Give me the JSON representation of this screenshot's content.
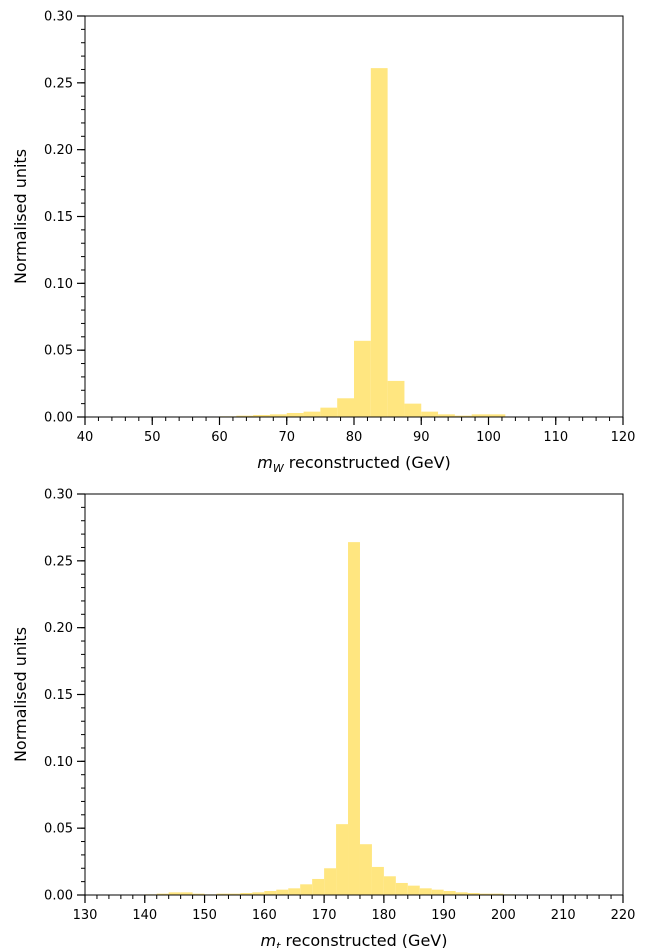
{
  "chart_data": [
    {
      "type": "bar",
      "subtype": "histogram",
      "bar_color": "#ffe680",
      "xlabel_var": "m",
      "xlabel_sub": "W",
      "xlabel_rest": " reconstructed (GeV)",
      "ylabel": "Normalised units",
      "xlim": [
        40,
        120
      ],
      "ylim": [
        0,
        0.3
      ],
      "x_major_ticks": [
        40,
        50,
        60,
        70,
        80,
        90,
        100,
        110,
        120
      ],
      "x_tick_labels": [
        "40",
        "50",
        "60",
        "70",
        "80",
        "90",
        "100",
        "110",
        "120"
      ],
      "x_minor_step": 2,
      "y_major_ticks": [
        0.0,
        0.05,
        0.1,
        0.15,
        0.2,
        0.25,
        0.3
      ],
      "y_tick_labels": [
        "0.00",
        "0.05",
        "0.10",
        "0.15",
        "0.20",
        "0.25",
        "0.30"
      ],
      "y_minor_step": 0.01,
      "bin_width": 2.5,
      "bins_start": [
        60,
        62.5,
        65,
        67.5,
        70,
        72.5,
        75,
        77.5,
        80,
        82.5,
        85,
        87.5,
        90,
        92.5,
        95,
        97.5,
        100
      ],
      "values": [
        0.0005,
        0.001,
        0.0015,
        0.002,
        0.003,
        0.004,
        0.007,
        0.014,
        0.057,
        0.261,
        0.027,
        0.01,
        0.004,
        0.002,
        0.001,
        0.002,
        0.002
      ]
    },
    {
      "type": "bar",
      "subtype": "histogram",
      "bar_color": "#ffe680",
      "xlabel_var": "m",
      "xlabel_sub": "t",
      "xlabel_rest": " reconstructed (GeV)",
      "ylabel": "Normalised units",
      "xlim": [
        130,
        220
      ],
      "ylim": [
        0,
        0.3
      ],
      "x_major_ticks": [
        130,
        140,
        150,
        160,
        170,
        180,
        190,
        200,
        210,
        220
      ],
      "x_tick_labels": [
        "130",
        "140",
        "150",
        "160",
        "170",
        "180",
        "190",
        "200",
        "210",
        "220"
      ],
      "x_minor_step": 2,
      "y_major_ticks": [
        0.0,
        0.05,
        0.1,
        0.15,
        0.2,
        0.25,
        0.3
      ],
      "y_tick_labels": [
        "0.00",
        "0.05",
        "0.10",
        "0.15",
        "0.20",
        "0.25",
        "0.30"
      ],
      "y_minor_step": 0.01,
      "bin_width": 2,
      "bins_start": [
        140,
        142,
        144,
        146,
        148,
        150,
        152,
        154,
        156,
        158,
        160,
        162,
        164,
        166,
        168,
        170,
        172,
        174,
        176,
        178,
        180,
        182,
        184,
        186,
        188,
        190,
        192,
        194,
        196,
        198,
        200
      ],
      "values": [
        0.0005,
        0.001,
        0.002,
        0.002,
        0.001,
        0.0005,
        0.001,
        0.001,
        0.0015,
        0.002,
        0.003,
        0.004,
        0.005,
        0.008,
        0.012,
        0.02,
        0.053,
        0.264,
        0.038,
        0.021,
        0.014,
        0.009,
        0.007,
        0.005,
        0.004,
        0.003,
        0.002,
        0.0015,
        0.001,
        0.001,
        0.0005
      ]
    }
  ]
}
